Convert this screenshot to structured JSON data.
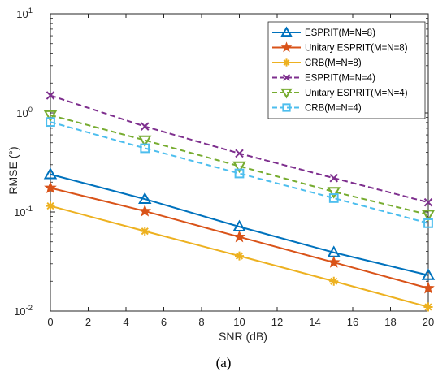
{
  "chart_data": {
    "type": "line",
    "title": "",
    "caption": "(a)",
    "xlabel": "SNR (dB)",
    "ylabel": "RMSE (°)",
    "x": [
      0,
      5,
      10,
      15,
      20
    ],
    "xlim": [
      0,
      20
    ],
    "xticks": [
      "0",
      "2",
      "4",
      "6",
      "8",
      "10",
      "12",
      "14",
      "16",
      "18",
      "20"
    ],
    "ylim": [
      0.01,
      10
    ],
    "yscale": "log",
    "yticks": [
      {
        "base": "10",
        "exp": "-2"
      },
      {
        "base": "10",
        "exp": "-1"
      },
      {
        "base": "10",
        "exp": "0"
      },
      {
        "base": "10",
        "exp": "1"
      }
    ],
    "grid": false,
    "legend_position": "top-right",
    "series": [
      {
        "name": "ESPRIT(M=N=8)",
        "values": [
          0.24,
          0.135,
          0.071,
          0.039,
          0.023
        ],
        "color": "#0072BD",
        "dash": "solid",
        "marker": "triangle-up"
      },
      {
        "name": "Unitary ESPRIT(M=N=8)",
        "values": [
          0.175,
          0.102,
          0.056,
          0.031,
          0.017
        ],
        "color": "#D95319",
        "dash": "solid",
        "marker": "star"
      },
      {
        "name": "CRB(M=N=8)",
        "values": [
          0.115,
          0.064,
          0.036,
          0.02,
          0.011
        ],
        "color": "#EDB120",
        "dash": "solid",
        "marker": "asterisk"
      },
      {
        "name": "ESPRIT(M=N=4)",
        "values": [
          1.5,
          0.73,
          0.39,
          0.22,
          0.125
        ],
        "color": "#7E2F8E",
        "dash": "dashed",
        "marker": "x"
      },
      {
        "name": "Unitary ESPRIT(M=N=4)",
        "values": [
          0.95,
          0.53,
          0.29,
          0.16,
          0.094
        ],
        "color": "#77AC30",
        "dash": "dashed",
        "marker": "triangle-down"
      },
      {
        "name": "CRB(M=N=4)",
        "values": [
          0.81,
          0.44,
          0.245,
          0.138,
          0.077
        ],
        "color": "#4DBEEE",
        "dash": "dashed",
        "marker": "square"
      }
    ]
  }
}
